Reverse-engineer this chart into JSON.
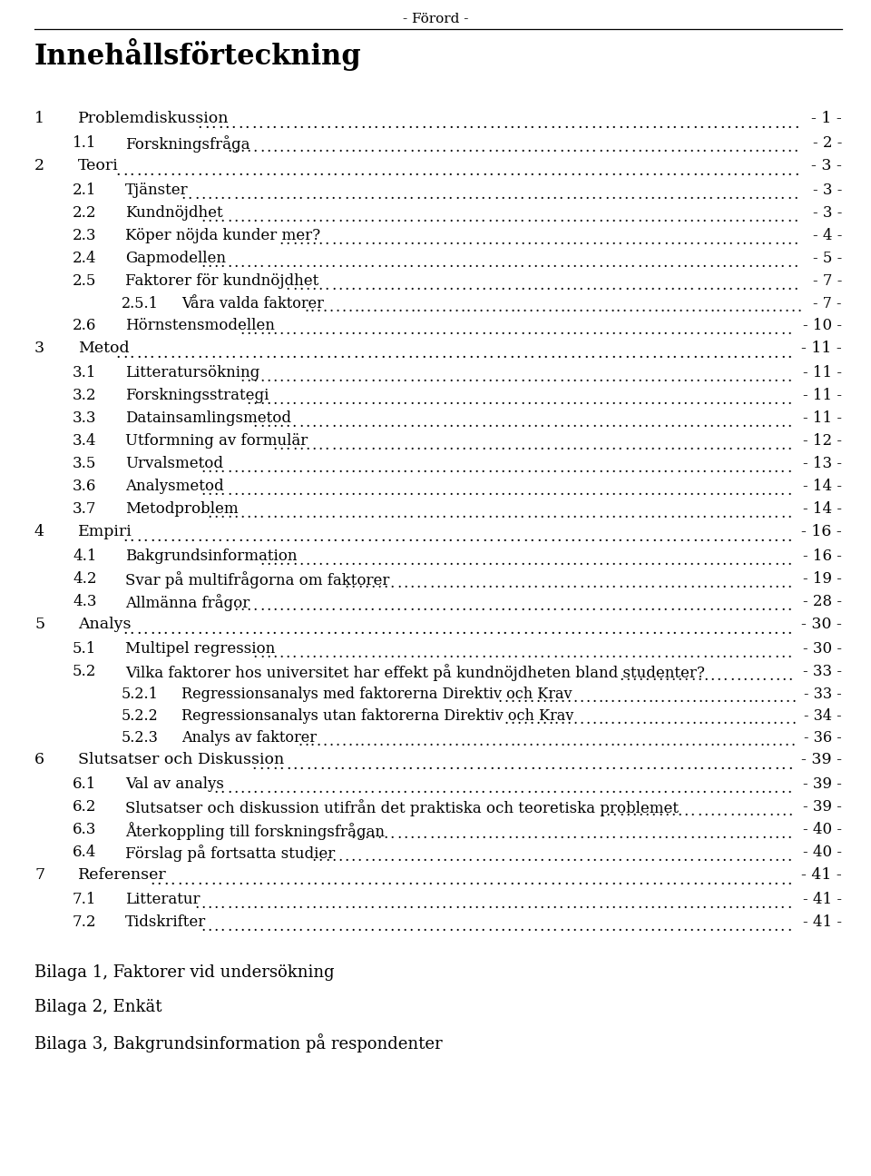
{
  "header": "- Förord -",
  "title": "Innehållsförteckning",
  "background_color": "#ffffff",
  "text_color": "#000000",
  "entries": [
    {
      "level": 1,
      "number": "1",
      "text": "Problemdiskussion",
      "page": "- 1 -"
    },
    {
      "level": 2,
      "number": "1.1",
      "text": "Forskningsfråga",
      "page": "- 2 -"
    },
    {
      "level": 1,
      "number": "2",
      "text": "Teori",
      "page": "- 3 -"
    },
    {
      "level": 2,
      "number": "2.1",
      "text": "Tjänster",
      "page": "- 3 -"
    },
    {
      "level": 2,
      "number": "2.2",
      "text": "Kundnöjdhet",
      "page": "- 3 -"
    },
    {
      "level": 2,
      "number": "2.3",
      "text": "Köper nöjda kunder mer?",
      "page": "- 4 -"
    },
    {
      "level": 2,
      "number": "2.4",
      "text": "Gapmodellen",
      "page": "- 5 -"
    },
    {
      "level": 2,
      "number": "2.5",
      "text": "Faktorer för kundnöjdhet",
      "page": "- 7 -"
    },
    {
      "level": 3,
      "number": "2.5.1",
      "text": "Våra valda faktorer",
      "page": "- 7 -"
    },
    {
      "level": 2,
      "number": "2.6",
      "text": "Hörnstensmodellen",
      "page": "- 10 -"
    },
    {
      "level": 1,
      "number": "3",
      "text": "Metod",
      "page": "- 11 -"
    },
    {
      "level": 2,
      "number": "3.1",
      "text": "Litteratursökning",
      "page": "- 11 -"
    },
    {
      "level": 2,
      "number": "3.2",
      "text": "Forskningsstrategi",
      "page": "- 11 -"
    },
    {
      "level": 2,
      "number": "3.3",
      "text": "Datainsamlingsmetod",
      "page": "- 11 -"
    },
    {
      "level": 2,
      "number": "3.4",
      "text": "Utformning av formulär",
      "page": "- 12 -"
    },
    {
      "level": 2,
      "number": "3.5",
      "text": "Urvalsmetod",
      "page": "- 13 -"
    },
    {
      "level": 2,
      "number": "3.6",
      "text": "Analysmetod",
      "page": "- 14 -"
    },
    {
      "level": 2,
      "number": "3.7",
      "text": "Metodproblem",
      "page": "- 14 -"
    },
    {
      "level": 1,
      "number": "4",
      "text": "Empiri",
      "page": "- 16 -"
    },
    {
      "level": 2,
      "number": "4.1",
      "text": "Bakgrundsinformation",
      "page": "- 16 -"
    },
    {
      "level": 2,
      "number": "4.2",
      "text": "Svar på multifrågorna om faktorer",
      "page": "- 19 -"
    },
    {
      "level": 2,
      "number": "4.3",
      "text": "Allmänna frågor",
      "page": "- 28 -"
    },
    {
      "level": 1,
      "number": "5",
      "text": "Analys",
      "page": "- 30 -"
    },
    {
      "level": 2,
      "number": "5.1",
      "text": "Multipel regression",
      "page": "- 30 -"
    },
    {
      "level": 2,
      "number": "5.2",
      "text": "Vilka faktorer hos universitet har effekt på kundnöjdheten bland studenter?",
      "page": "- 33 -"
    },
    {
      "level": 3,
      "number": "5.2.1",
      "text": "Regressionsanalys med faktorerna Direktiv och Krav",
      "page": "- 33 -"
    },
    {
      "level": 3,
      "number": "5.2.2",
      "text": "Regressionsanalys utan faktorerna Direktiv och Krav",
      "page": "- 34 -"
    },
    {
      "level": 3,
      "number": "5.2.3",
      "text": "Analys av faktorer",
      "page": "- 36 -"
    },
    {
      "level": 1,
      "number": "6",
      "text": "Slutsatser och Diskussion",
      "page": "- 39 -"
    },
    {
      "level": 2,
      "number": "6.1",
      "text": "Val av analys",
      "page": "- 39 -"
    },
    {
      "level": 2,
      "number": "6.2",
      "text": "Slutsatser och diskussion utifrån det praktiska och teoretiska problemet",
      "page": "- 39 -"
    },
    {
      "level": 2,
      "number": "6.3",
      "text": "Återkoppling till forskningsfrågan",
      "page": "- 40 -"
    },
    {
      "level": 2,
      "number": "6.4",
      "text": "Förslag på fortsatta studier",
      "page": "- 40 -"
    },
    {
      "level": 1,
      "number": "7",
      "text": "Referenser",
      "page": "- 41 -"
    },
    {
      "level": 2,
      "number": "7.1",
      "text": "Litteratur",
      "page": "- 41 -"
    },
    {
      "level": 2,
      "number": "7.2",
      "text": "Tidskrifter",
      "page": "- 41 -"
    }
  ],
  "appendices": [
    "Bilaga 1, Faktorer vid undersökning",
    "Bilaga 2, Enkät",
    "Bilaga 3, Bakgrundsinformation på respondenter"
  ]
}
